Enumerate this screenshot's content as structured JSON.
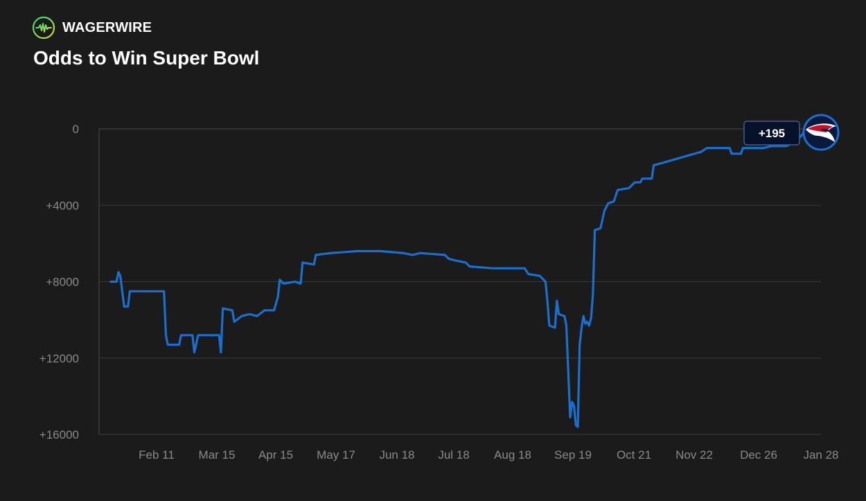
{
  "brand": {
    "name": "WAGERWIRE",
    "logo_icon": "pulse-line-icon"
  },
  "chart_data": {
    "type": "line",
    "title": "Odds to Win Super Bowl",
    "xlabel": "",
    "ylabel": "",
    "y_reversed": true,
    "ylim": [
      0,
      16000
    ],
    "y_ticks": [
      0,
      4000,
      8000,
      12000,
      16000
    ],
    "y_tick_labels": [
      "0",
      "+4000",
      "+8000",
      "+12000",
      "+16000"
    ],
    "x_tick_labels": [
      "Feb 11",
      "Mar 15",
      "Apr 15",
      "May 17",
      "Jun 18",
      "Jul 18",
      "Aug 18",
      "Sep 19",
      "Oct 21",
      "Nov 22",
      "Dec 26",
      "Jan 28"
    ],
    "grid": "horizontal",
    "line_color": "#1a6fd1",
    "current_value_label": "+195",
    "team_icon": "patriots-logo-icon",
    "series": [
      {
        "points": [
          [
            "Jan 12",
            8000
          ],
          [
            "Jan 15",
            8000
          ],
          [
            "Jan 16",
            7500
          ],
          [
            "Jan 17",
            7700
          ],
          [
            "Jan 18",
            8500
          ],
          [
            "Jan 19",
            9300
          ],
          [
            "Jan 21",
            9300
          ],
          [
            "Jan 22",
            8500
          ],
          [
            "Feb 3",
            8500
          ],
          [
            "Feb 9",
            8500
          ],
          [
            "Feb 10",
            10800
          ],
          [
            "Feb 11",
            11300
          ],
          [
            "Feb 17",
            11300
          ],
          [
            "Feb 18",
            10800
          ],
          [
            "Feb 24",
            10800
          ],
          [
            "Feb 25",
            11700
          ],
          [
            "Feb 27",
            10800
          ],
          [
            "Mar 10",
            10800
          ],
          [
            "Mar 11",
            11700
          ],
          [
            "Mar 12",
            9400
          ],
          [
            "Mar 17",
            9500
          ],
          [
            "Mar 18",
            10100
          ],
          [
            "Mar 22",
            9800
          ],
          [
            "Mar 26",
            9700
          ],
          [
            "Mar 30",
            9800
          ],
          [
            "Apr 3",
            9500
          ],
          [
            "Apr 8",
            9500
          ],
          [
            "Apr 10",
            8800
          ],
          [
            "Apr 11",
            7900
          ],
          [
            "Apr 13",
            8100
          ],
          [
            "Apr 19",
            8000
          ],
          [
            "Apr 22",
            8100
          ],
          [
            "Apr 23",
            7000
          ],
          [
            "Apr 29",
            7100
          ],
          [
            "Apr 30",
            6600
          ],
          [
            "May 8",
            6500
          ],
          [
            "May 22",
            6400
          ],
          [
            "Jun 3",
            6400
          ],
          [
            "Jun 15",
            6500
          ],
          [
            "Jun 20",
            6600
          ],
          [
            "Jun 24",
            6500
          ],
          [
            "Jul 7",
            6600
          ],
          [
            "Jul 9",
            6800
          ],
          [
            "Jul 13",
            6900
          ],
          [
            "Jul 18",
            7000
          ],
          [
            "Jul 20",
            7200
          ],
          [
            "Aug 1",
            7300
          ],
          [
            "Aug 15",
            7300
          ],
          [
            "Aug 18",
            7300
          ],
          [
            "Aug 20",
            7600
          ],
          [
            "Aug 26",
            7700
          ],
          [
            "Aug 28",
            7900
          ],
          [
            "Aug 29",
            8000
          ],
          [
            "Aug 30",
            9000
          ],
          [
            "Aug 31",
            10300
          ],
          [
            "Sep 3",
            10400
          ],
          [
            "Sep 4",
            9000
          ],
          [
            "Sep 5",
            9700
          ],
          [
            "Sep 8",
            9800
          ],
          [
            "Sep 9",
            10300
          ],
          [
            "Sep 11",
            15100
          ],
          [
            "Sep 12",
            14300
          ],
          [
            "Sep 13",
            14500
          ],
          [
            "Sep 14",
            15500
          ],
          [
            "Sep 15",
            15600
          ],
          [
            "Sep 16",
            11300
          ],
          [
            "Sep 17",
            10400
          ],
          [
            "Sep 18",
            9800
          ],
          [
            "Sep 19",
            10200
          ],
          [
            "Sep 20",
            10100
          ],
          [
            "Sep 21",
            10300
          ],
          [
            "Sep 22",
            9900
          ],
          [
            "Sep 23",
            8600
          ],
          [
            "Sep 24",
            5300
          ],
          [
            "Sep 27",
            5200
          ],
          [
            "Sep 29",
            4300
          ],
          [
            "Oct 1",
            3900
          ],
          [
            "Oct 4",
            3800
          ],
          [
            "Oct 6",
            3200
          ],
          [
            "Oct 12",
            3100
          ],
          [
            "Oct 15",
            2800
          ],
          [
            "Oct 18",
            2800
          ],
          [
            "Oct 19",
            2600
          ],
          [
            "Oct 24",
            2600
          ],
          [
            "Oct 25",
            1900
          ],
          [
            "Oct 29",
            1800
          ],
          [
            "Nov 5",
            1600
          ],
          [
            "Nov 12",
            1400
          ],
          [
            "Nov 19",
            1200
          ],
          [
            "Nov 22",
            1000
          ],
          [
            "Dec 4",
            1000
          ],
          [
            "Dec 5",
            1300
          ],
          [
            "Dec 10",
            1300
          ],
          [
            "Dec 11",
            1000
          ],
          [
            "Dec 22",
            1000
          ],
          [
            "Dec 26",
            900
          ],
          [
            "Jan 3",
            900
          ],
          [
            "Jan 5",
            800
          ],
          [
            "Jan 8",
            700
          ],
          [
            "Jan 12",
            195
          ]
        ]
      }
    ]
  }
}
